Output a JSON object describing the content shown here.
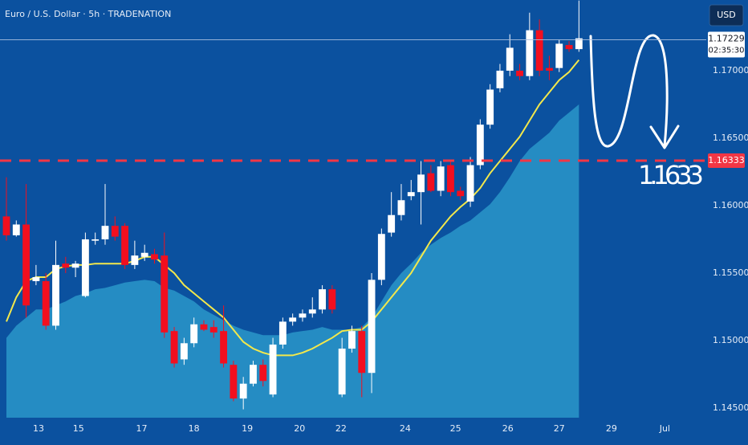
{
  "chart_data": {
    "type": "candlestick",
    "title": "Euro / U.S. Dollar · 5h · TRADENATION",
    "currency": "USD",
    "background": "#0b519f",
    "up_color": "#ffffff",
    "down_color": "#f20f1f",
    "ylim": [
      1.14428,
      1.17524
    ],
    "yticks": [
      {
        "value": 1.145,
        "label": "1.14500"
      },
      {
        "value": 1.15,
        "label": "1.15000"
      },
      {
        "value": 1.155,
        "label": "1.15500"
      },
      {
        "value": 1.16,
        "label": "1.16000"
      },
      {
        "value": 1.165,
        "label": "1.16500"
      },
      {
        "value": 1.17,
        "label": "1.17000"
      }
    ],
    "xlim": [
      -0.65,
      70.9
    ],
    "xticks": [
      {
        "value": 3.25,
        "label": "13"
      },
      {
        "value": 7.3,
        "label": "15"
      },
      {
        "value": 13.7,
        "label": "17"
      },
      {
        "value": 19.0,
        "label": "18"
      },
      {
        "value": 24.4,
        "label": "19"
      },
      {
        "value": 29.7,
        "label": "20"
      },
      {
        "value": 33.9,
        "label": "22"
      },
      {
        "value": 40.4,
        "label": "24"
      },
      {
        "value": 45.5,
        "label": "25"
      },
      {
        "value": 50.8,
        "label": "26"
      },
      {
        "value": 56.0,
        "label": "27"
      },
      {
        "value": 61.3,
        "label": "29"
      },
      {
        "value": 66.7,
        "label": "Jul"
      }
    ],
    "candles": {
      "open": [
        1.1592,
        1.1578,
        1.1586,
        1.1544,
        1.1544,
        1.1511,
        1.1557,
        1.1554,
        1.1533,
        1.1574,
        1.1575,
        1.1585,
        1.1585,
        1.1556,
        1.1562,
        1.1564,
        1.1563,
        1.1507,
        1.1486,
        1.1498,
        1.1512,
        1.151,
        1.1507,
        1.1482,
        1.1457,
        1.1468,
        1.1482,
        1.146,
        1.1497,
        1.1514,
        1.1517,
        1.152,
        1.1523,
        1.1538,
        1.146,
        1.1494,
        1.1507,
        1.1476,
        1.1545,
        1.158,
        1.1593,
        1.1607,
        1.161,
        1.1624,
        1.1611,
        1.163,
        1.1611,
        1.1603,
        1.163,
        1.166,
        1.1687,
        1.17,
        1.17,
        1.1696,
        1.173,
        1.1702,
        1.1702,
        1.1719,
        1.1716
      ],
      "high": [
        1.1621,
        1.1589,
        1.1616,
        1.1556,
        1.155,
        1.1574,
        1.1562,
        1.1559,
        1.158,
        1.158,
        1.1616,
        1.1592,
        1.1587,
        1.1574,
        1.1571,
        1.1568,
        1.158,
        1.151,
        1.1502,
        1.1517,
        1.1515,
        1.1515,
        1.1526,
        1.1485,
        1.1473,
        1.1485,
        1.1486,
        1.1502,
        1.1517,
        1.152,
        1.1523,
        1.1532,
        1.1541,
        1.1541,
        1.1502,
        1.1511,
        1.1511,
        1.155,
        1.1583,
        1.161,
        1.1616,
        1.1619,
        1.1633,
        1.163,
        1.1633,
        1.1633,
        1.1614,
        1.1636,
        1.1664,
        1.169,
        1.1705,
        1.1727,
        1.1705,
        1.1743,
        1.1738,
        1.1711,
        1.1723,
        1.1722,
        1.1752
      ],
      "low": [
        1.1574,
        1.1577,
        1.1517,
        1.1541,
        1.1508,
        1.1508,
        1.155,
        1.1547,
        1.1532,
        1.1571,
        1.1571,
        1.1574,
        1.1553,
        1.1553,
        1.1559,
        1.1557,
        1.1502,
        1.148,
        1.1482,
        1.1495,
        1.1507,
        1.1502,
        1.148,
        1.1455,
        1.1449,
        1.1466,
        1.1466,
        1.1458,
        1.1494,
        1.1511,
        1.1514,
        1.1517,
        1.152,
        1.152,
        1.1458,
        1.1491,
        1.1458,
        1.1461,
        1.1541,
        1.1577,
        1.1589,
        1.1604,
        1.1586,
        1.161,
        1.1607,
        1.1607,
        1.1604,
        1.1599,
        1.1627,
        1.1657,
        1.1684,
        1.1696,
        1.1693,
        1.1693,
        1.1696,
        1.1693,
        1.1699,
        1.1714,
        1.1714
      ],
      "close": [
        1.1578,
        1.1586,
        1.1526,
        1.1547,
        1.1511,
        1.1556,
        1.1554,
        1.1557,
        1.1575,
        1.1575,
        1.1585,
        1.1577,
        1.1556,
        1.1563,
        1.1565,
        1.156,
        1.1506,
        1.1483,
        1.1498,
        1.1512,
        1.1508,
        1.1506,
        1.1483,
        1.1457,
        1.1468,
        1.1482,
        1.147,
        1.1497,
        1.1514,
        1.1517,
        1.152,
        1.1523,
        1.1538,
        1.1523,
        1.1494,
        1.1507,
        1.1476,
        1.1545,
        1.1579,
        1.1593,
        1.1604,
        1.161,
        1.1623,
        1.1611,
        1.1629,
        1.161,
        1.1607,
        1.163,
        1.166,
        1.1686,
        1.17,
        1.1717,
        1.1696,
        1.173,
        1.17,
        1.17,
        1.172,
        1.1716,
        1.1724
      ]
    },
    "ma": {
      "color": "#f3e84b",
      "values": [
        1.1514,
        1.1532,
        1.1544,
        1.1547,
        1.1547,
        1.1553,
        1.1555,
        1.1556,
        1.1556,
        1.1557,
        1.1557,
        1.1557,
        1.1557,
        1.1559,
        1.1562,
        1.1562,
        1.1556,
        1.155,
        1.1541,
        1.1535,
        1.1529,
        1.1523,
        1.1517,
        1.1508,
        1.1499,
        1.1494,
        1.1491,
        1.1489,
        1.1489,
        1.1489,
        1.1491,
        1.1494,
        1.1498,
        1.1502,
        1.1507,
        1.1508,
        1.1508,
        1.1514,
        1.1523,
        1.1532,
        1.1541,
        1.155,
        1.1562,
        1.1574,
        1.1583,
        1.1592,
        1.1599,
        1.1605,
        1.1613,
        1.1624,
        1.1633,
        1.1642,
        1.1651,
        1.1663,
        1.1675,
        1.1684,
        1.1693,
        1.1699,
        1.1708
      ]
    },
    "area": {
      "color": "#2a97c9",
      "values": [
        1.1502,
        1.1511,
        1.1517,
        1.1523,
        1.1523,
        1.1526,
        1.1529,
        1.1533,
        1.1535,
        1.1538,
        1.1539,
        1.1541,
        1.1543,
        1.1544,
        1.1545,
        1.1544,
        1.1539,
        1.1537,
        1.1533,
        1.1529,
        1.1523,
        1.1519,
        1.1515,
        1.1511,
        1.1508,
        1.1506,
        1.1504,
        1.1504,
        1.1504,
        1.1506,
        1.1507,
        1.1508,
        1.151,
        1.1508,
        1.1508,
        1.1508,
        1.151,
        1.1517,
        1.1529,
        1.1541,
        1.155,
        1.1557,
        1.1565,
        1.1571,
        1.1576,
        1.158,
        1.1585,
        1.1589,
        1.1595,
        1.1601,
        1.161,
        1.1621,
        1.1633,
        1.1642,
        1.1648,
        1.1654,
        1.1663,
        1.1669,
        1.1675
      ]
    },
    "level": {
      "value": 1.16333,
      "color": "#f23645"
    },
    "last_price": {
      "value": 1.17229,
      "countdown": "02:35:30"
    },
    "annotation": "1.1633"
  }
}
